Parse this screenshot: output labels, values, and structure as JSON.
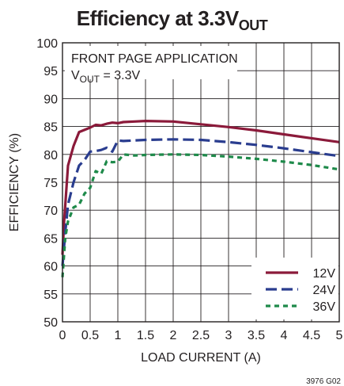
{
  "chart_data": {
    "type": "line",
    "title": "Efficiency at 3.3V",
    "title_sub": "OUT",
    "xlabel": "LOAD CURRENT (A)",
    "ylabel": "EFFICIENCY (%)",
    "xlim": [
      0,
      5
    ],
    "ylim": [
      50,
      100
    ],
    "xticks": [
      0,
      0.5,
      1,
      1.5,
      2,
      2.5,
      3,
      3.5,
      4,
      4.5,
      5
    ],
    "xtick_labels": [
      "0",
      "0.5",
      "1",
      "1.5",
      "2",
      "2.5",
      "3",
      "3.5",
      "4",
      "4.5",
      "5"
    ],
    "yticks": [
      50,
      55,
      60,
      65,
      70,
      75,
      80,
      85,
      90,
      95,
      100
    ],
    "ytick_labels": [
      "50",
      "55",
      "60",
      "65",
      "70",
      "75",
      "80",
      "85",
      "90",
      "95",
      "100"
    ],
    "grid": true,
    "legend_position": "bottom-right",
    "annotation": {
      "line1": "FRONT PAGE APPLICATION",
      "line2_main": "V",
      "line2_sub": "OUT",
      "line2_rest": " = 3.3V"
    },
    "figure_code": "3976 G02",
    "series": [
      {
        "name": "12V",
        "color": "#8b1a3a",
        "dash": "solid",
        "x": [
          0,
          0.03,
          0.1,
          0.2,
          0.3,
          0.5,
          0.6,
          0.7,
          0.8,
          0.9,
          1.0,
          1.1,
          1.3,
          1.5,
          2.0,
          2.5,
          3.0,
          3.5,
          4.0,
          4.5,
          5.0
        ],
        "y": [
          62,
          68,
          78,
          81.5,
          84,
          84.8,
          85.3,
          85.2,
          85.5,
          85.7,
          85.6,
          85.8,
          85.9,
          86,
          85.9,
          85.4,
          84.9,
          84.3,
          83.6,
          82.9,
          82.2
        ]
      },
      {
        "name": "24V",
        "color": "#2a3d8f",
        "dash": "long",
        "x": [
          0,
          0.05,
          0.1,
          0.2,
          0.3,
          0.4,
          0.5,
          0.6,
          0.7,
          0.8,
          0.9,
          1.0,
          1.1,
          1.3,
          1.5,
          2.0,
          2.5,
          3.0,
          3.5,
          4.0,
          4.5,
          5.0
        ],
        "y": [
          60,
          66,
          71,
          75,
          78,
          79,
          80.5,
          80.6,
          80.8,
          81.2,
          80.5,
          82.5,
          82.4,
          82.5,
          82.6,
          82.7,
          82.6,
          82.2,
          81.7,
          81.1,
          80.4,
          79.7
        ]
      },
      {
        "name": "36V",
        "color": "#1e8a4a",
        "dash": "short",
        "x": [
          0,
          0.05,
          0.1,
          0.2,
          0.3,
          0.4,
          0.5,
          0.6,
          0.7,
          0.8,
          0.9,
          1.0,
          1.1,
          1.3,
          1.5,
          2.0,
          2.5,
          3.0,
          3.5,
          4.0,
          4.5,
          5.0
        ],
        "y": [
          58,
          65,
          68,
          70.5,
          71,
          73,
          74,
          77,
          76.5,
          78.8,
          78.6,
          78.7,
          80,
          79.8,
          79.9,
          80,
          79.9,
          79.6,
          79.2,
          78.7,
          78.1,
          77.3
        ]
      }
    ]
  }
}
